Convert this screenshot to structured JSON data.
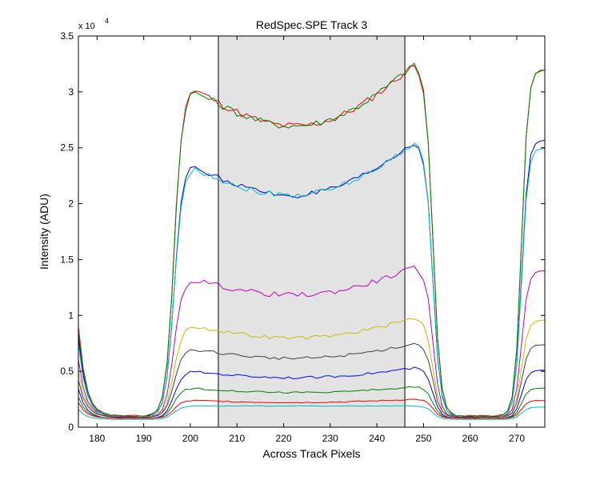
{
  "chart_data": {
    "type": "line",
    "title": "RedSpec.SPE   Track 3",
    "xlabel": "Across Track Pixels",
    "ylabel": "Intensity (ADU)",
    "y_exponent_label": "x 10",
    "y_exponent": "4",
    "xlim": [
      176,
      276
    ],
    "ylim": [
      0,
      3.5
    ],
    "grid": false,
    "legend": "none",
    "x_ticks": [
      180,
      190,
      200,
      210,
      220,
      230,
      240,
      250,
      260,
      270
    ],
    "y_ticks": [
      0,
      0.5,
      1,
      1.5,
      2,
      2.5,
      3,
      3.5
    ],
    "x_tick_labels": [
      "180",
      "190",
      "200",
      "210",
      "220",
      "230",
      "240",
      "250",
      "260",
      "270"
    ],
    "y_tick_labels": [
      "0",
      "0.5",
      "1",
      "1.5",
      "2",
      "2.5",
      "3",
      "3.5"
    ],
    "shaded_region": {
      "x_start": 206,
      "x_end": 246,
      "color": "#e3e3e3"
    },
    "series": [
      {
        "color": "#ff0000",
        "low": 0.1,
        "plateau": 3.05,
        "dip": 0.38,
        "tilt": 0.1,
        "noise": 0.025,
        "peak": 3.25,
        "left_tail": 0.9,
        "right_end": 3.2
      },
      {
        "color": "#008000",
        "low": 0.1,
        "plateau": 3.03,
        "dip": 0.36,
        "tilt": 0.08,
        "noise": 0.025,
        "peak": 3.25,
        "left_tail": 0.85,
        "right_end": 3.2
      },
      {
        "color": "#0000cc",
        "low": 0.09,
        "plateau": 2.35,
        "dip": 0.3,
        "tilt": 0.05,
        "noise": 0.02,
        "peak": 2.55,
        "left_tail": 0.8,
        "right_end": 2.57
      },
      {
        "color": "#00bfbf",
        "low": 0.09,
        "plateau": 2.33,
        "dip": 0.28,
        "tilt": 0.06,
        "noise": 0.02,
        "peak": 2.55,
        "left_tail": 0.75,
        "right_end": 2.5
      },
      {
        "color": "#bf00bf",
        "low": 0.09,
        "plateau": 1.33,
        "dip": 0.16,
        "tilt": 0.04,
        "noise": 0.018,
        "peak": 1.43,
        "left_tail": 0.6,
        "right_end": 1.4
      },
      {
        "color": "#bfbf00",
        "low": 0.09,
        "plateau": 0.91,
        "dip": 0.12,
        "tilt": 0.03,
        "noise": 0.012,
        "peak": 0.98,
        "left_tail": 0.5,
        "right_end": 0.96
      },
      {
        "color": "#404040",
        "low": 0.09,
        "plateau": 0.7,
        "dip": 0.09,
        "tilt": 0.02,
        "noise": 0.01,
        "peak": 0.75,
        "left_tail": 0.42,
        "right_end": 0.74
      },
      {
        "color": "#0000ff",
        "low": 0.08,
        "plateau": 0.5,
        "dip": 0.06,
        "tilt": 0.02,
        "noise": 0.008,
        "peak": 0.53,
        "left_tail": 0.34,
        "right_end": 0.51
      },
      {
        "color": "#008000",
        "low": 0.08,
        "plateau": 0.35,
        "dip": 0.04,
        "tilt": 0.01,
        "noise": 0.006,
        "peak": 0.36,
        "left_tail": 0.27,
        "right_end": 0.35
      },
      {
        "color": "#ff0000",
        "low": 0.08,
        "plateau": 0.24,
        "dip": 0.02,
        "tilt": 0.005,
        "noise": 0.004,
        "peak": 0.25,
        "left_tail": 0.22,
        "right_end": 0.24
      },
      {
        "color": "#00bfbf",
        "low": 0.07,
        "plateau": 0.19,
        "dip": 0.0,
        "tilt": 0.0,
        "noise": 0.002,
        "peak": 0.19,
        "left_tail": 0.16,
        "right_end": 0.18
      }
    ]
  }
}
